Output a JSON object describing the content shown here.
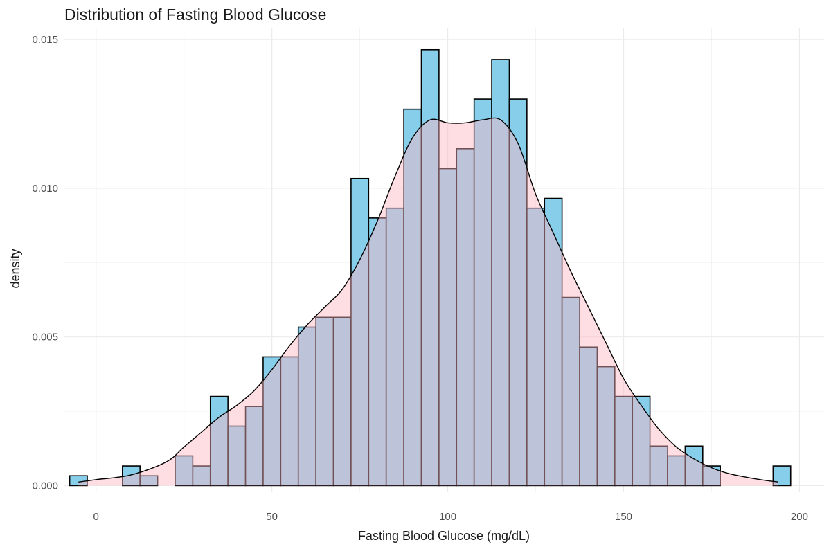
{
  "chart_data": {
    "type": "bar",
    "title": "Distribution of Fasting Blood Glucose",
    "xlabel": "Fasting Blood Glucose (mg/dL)",
    "ylabel": "density",
    "xlim": [
      -9,
      207
    ],
    "ylim": [
      -0.0002,
      0.0154
    ],
    "x_ticks": [
      "0",
      "50",
      "100",
      "150",
      "200"
    ],
    "y_ticks": [
      "0.000",
      "0.005",
      "0.010",
      "0.015"
    ],
    "grid": true,
    "legend": "none",
    "colors": {
      "bar_fill": "#87ceeb",
      "bar_outline": "#000000",
      "density_fill": "#ffb6c1"
    },
    "histogram": {
      "bin_start": -7.5,
      "bin_width": 5,
      "values": [
        0.00033,
        0,
        0,
        0.00066,
        0.00033,
        0,
        0.001,
        0.00066,
        0.003,
        0.002,
        0.00266,
        0.00433,
        0.00433,
        0.00533,
        0.00566,
        0.00566,
        0.01033,
        0.009,
        0.00933,
        0.01266,
        0.01466,
        0.01066,
        0.01133,
        0.013,
        0.01433,
        0.013,
        0.00933,
        0.00966,
        0.00633,
        0.00466,
        0.004,
        0.003,
        0.003,
        0.00133,
        0.001,
        0.00133,
        0.00066,
        0,
        0,
        0,
        0.00066
      ]
    },
    "density": {
      "x": [
        -5,
        0,
        10,
        20,
        25,
        30,
        35,
        40,
        45,
        50,
        55,
        60,
        65,
        70,
        75,
        80,
        85,
        90,
        95,
        100,
        105,
        110,
        115,
        120,
        125,
        130,
        135,
        140,
        145,
        150,
        155,
        160,
        165,
        170,
        175,
        180,
        185,
        190,
        194
      ],
      "y": [
        0.00012,
        0.0002,
        0.00036,
        0.0008,
        0.0013,
        0.0018,
        0.0023,
        0.0027,
        0.0032,
        0.0039,
        0.0047,
        0.0054,
        0.006,
        0.0066,
        0.0076,
        0.0089,
        0.0104,
        0.0117,
        0.0123,
        0.0122,
        0.0122,
        0.0123,
        0.0123,
        0.0115,
        0.0098,
        0.0085,
        0.0072,
        0.006,
        0.0048,
        0.0036,
        0.0027,
        0.0019,
        0.0013,
        0.0009,
        0.0006,
        0.0004,
        0.00028,
        0.00018,
        0.00012
      ]
    }
  }
}
